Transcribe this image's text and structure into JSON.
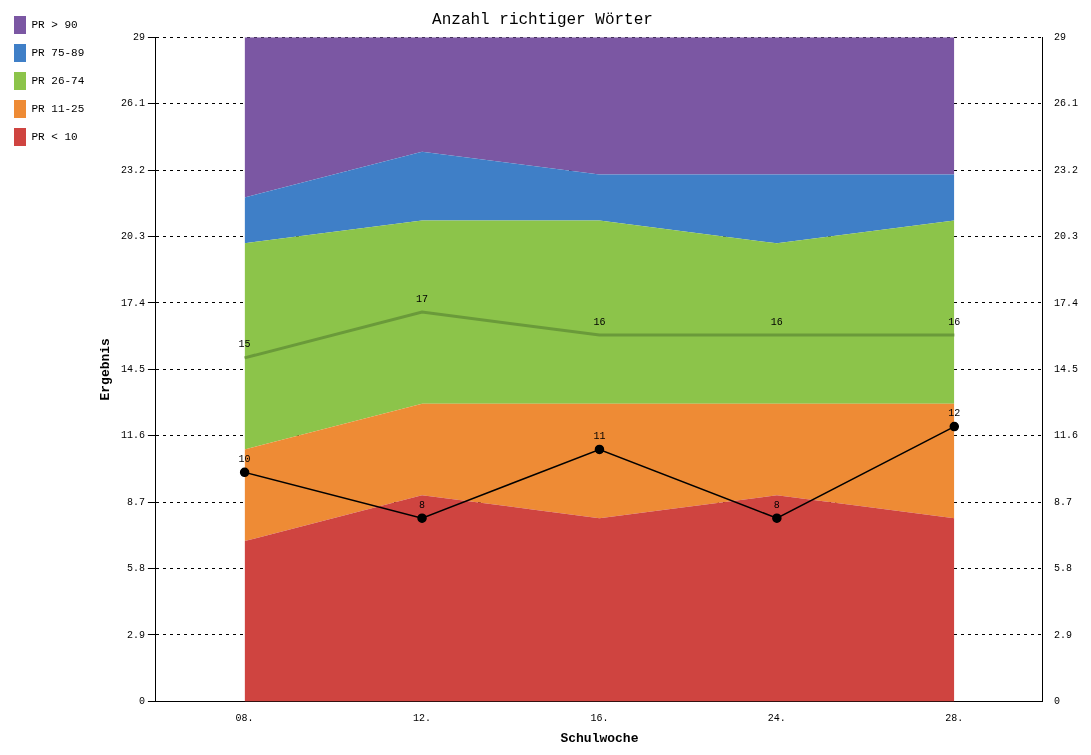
{
  "chart_data": {
    "type": "area",
    "title": "Anzahl richtiger Wörter",
    "xlabel": "Schulwoche",
    "ylabel": "Ergebnis",
    "categories": [
      "08.",
      "12.",
      "16.",
      "24.",
      "28."
    ],
    "stacked": true,
    "ylim": [
      0,
      29
    ],
    "yticks": [
      0,
      2.9,
      5.8,
      8.7,
      11.6,
      14.5,
      17.4,
      20.3,
      23.2,
      26.1,
      29
    ],
    "y2lim": [
      0,
      29
    ],
    "y2ticks": [
      0,
      2.9,
      5.8,
      8.7,
      11.6,
      14.5,
      17.4,
      20.3,
      23.2,
      26.1,
      29
    ],
    "grid": "y",
    "legend": "top left",
    "series": [
      {
        "name": "PR < 10",
        "color": "#cf4440",
        "values": [
          7,
          9,
          8,
          9,
          8
        ]
      },
      {
        "name": "PR 11-25",
        "color": "#ee8b35",
        "values": [
          4,
          4,
          5,
          4,
          5
        ]
      },
      {
        "name": "PR 26-74",
        "color": "#8cc44a",
        "values": [
          9,
          8,
          8,
          7,
          8
        ]
      },
      {
        "name": "PR 75-89",
        "color": "#3f7fc7",
        "values": [
          2,
          3,
          2,
          3,
          2
        ]
      },
      {
        "name": "PR > 90",
        "color": "#7b57a3",
        "values": [
          7,
          5,
          6,
          6,
          6
        ]
      },
      {
        "type": "line",
        "color": "#6a9a3a",
        "marker": "none",
        "values": [
          15,
          17,
          16,
          16,
          16
        ],
        "value_labels": [
          "15",
          "17",
          "16",
          "16",
          "16"
        ]
      },
      {
        "type": "line",
        "color": "#000000",
        "marker": "circle",
        "values": [
          10,
          8,
          11,
          8,
          12
        ],
        "value_labels": [
          "10",
          "8",
          "11",
          "8",
          "12"
        ]
      }
    ]
  }
}
